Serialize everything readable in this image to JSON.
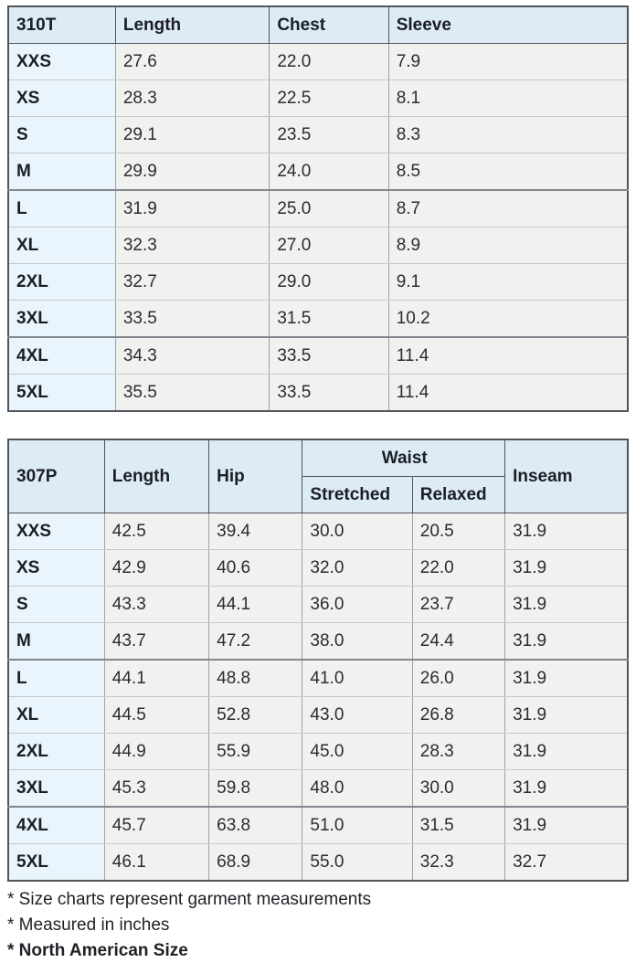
{
  "tables": [
    {
      "columns": [
        "310T",
        "Length",
        "Chest",
        "Sleeve"
      ],
      "rows": [
        {
          "size": "XXS",
          "values": [
            "27.6",
            "22.0",
            "7.9"
          ]
        },
        {
          "size": "XS",
          "values": [
            "28.3",
            "22.5",
            "8.1"
          ]
        },
        {
          "size": "S",
          "values": [
            "29.1",
            "23.5",
            "8.3"
          ]
        },
        {
          "size": "M",
          "values": [
            "29.9",
            "24.0",
            "8.5"
          ]
        },
        {
          "size": "L",
          "values": [
            "31.9",
            "25.0",
            "8.7"
          ]
        },
        {
          "size": "XL",
          "values": [
            "32.3",
            "27.0",
            "8.9"
          ]
        },
        {
          "size": "2XL",
          "values": [
            "32.7",
            "29.0",
            "9.1"
          ]
        },
        {
          "size": "3XL",
          "values": [
            "33.5",
            "31.5",
            "10.2"
          ]
        },
        {
          "size": "4XL",
          "values": [
            "34.3",
            "33.5",
            "11.4"
          ]
        },
        {
          "size": "5XL",
          "values": [
            "35.5",
            "33.5",
            "11.4"
          ]
        }
      ]
    },
    {
      "columns": [
        "307P",
        "Length",
        "Hip",
        "Waist",
        "Inseam"
      ],
      "waist_sub": [
        "Stretched",
        "Relaxed"
      ],
      "rows": [
        {
          "size": "XXS",
          "values": [
            "42.5",
            "39.4",
            "30.0",
            "20.5",
            "31.9"
          ]
        },
        {
          "size": "XS",
          "values": [
            "42.9",
            "40.6",
            "32.0",
            "22.0",
            "31.9"
          ]
        },
        {
          "size": "S",
          "values": [
            "43.3",
            "44.1",
            "36.0",
            "23.7",
            "31.9"
          ]
        },
        {
          "size": "M",
          "values": [
            "43.7",
            "47.2",
            "38.0",
            "24.4",
            "31.9"
          ]
        },
        {
          "size": "L",
          "values": [
            "44.1",
            "48.8",
            "41.0",
            "26.0",
            "31.9"
          ]
        },
        {
          "size": "XL",
          "values": [
            "44.5",
            "52.8",
            "43.0",
            "26.8",
            "31.9"
          ]
        },
        {
          "size": "2XL",
          "values": [
            "44.9",
            "55.9",
            "45.0",
            "28.3",
            "31.9"
          ]
        },
        {
          "size": "3XL",
          "values": [
            "45.3",
            "59.8",
            "48.0",
            "30.0",
            "31.9"
          ]
        },
        {
          "size": "4XL",
          "values": [
            "45.7",
            "63.8",
            "51.0",
            "31.5",
            "31.9"
          ]
        },
        {
          "size": "5XL",
          "values": [
            "46.1",
            "68.9",
            "55.0",
            "32.3",
            "32.7"
          ]
        }
      ]
    }
  ],
  "footnotes": [
    "* Size charts represent garment measurements",
    "* Measured in inches",
    "* North American Size"
  ]
}
